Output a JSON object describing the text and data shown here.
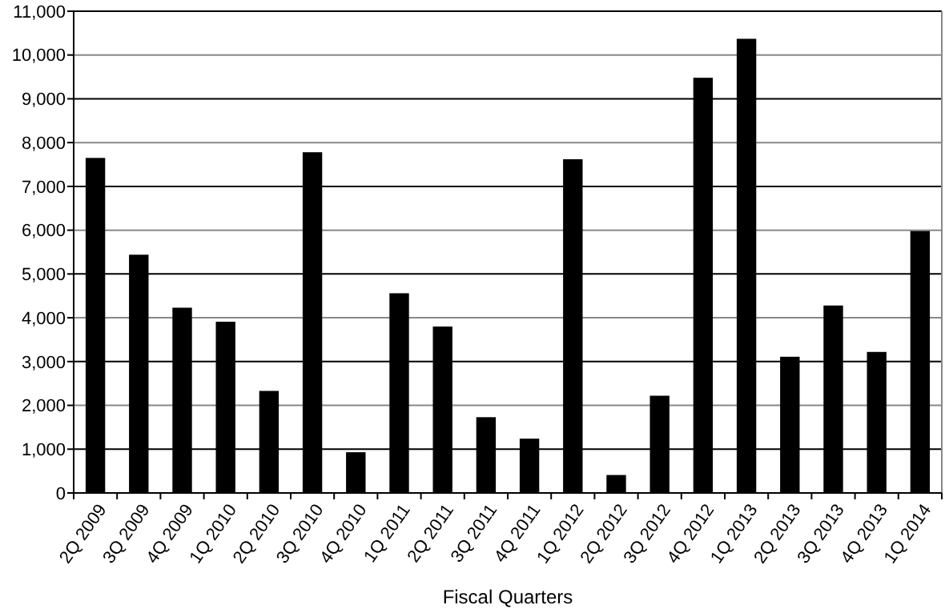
{
  "chart_data": {
    "type": "bar",
    "xlabel": "Fiscal Quarters",
    "categories": [
      "2Q 2009",
      "3Q 2009",
      "4Q 2009",
      "1Q 2010",
      "2Q 2010",
      "3Q 2010",
      "4Q 2010",
      "1Q 2011",
      "2Q 2011",
      "3Q 2011",
      "4Q 2011",
      "1Q 2012",
      "2Q 2012",
      "3Q 2012",
      "4Q 2012",
      "1Q 2013",
      "2Q 2013",
      "3Q 2013",
      "4Q 2013",
      "1Q 2014"
    ],
    "values": [
      7650,
      5440,
      4230,
      3910,
      2330,
      7780,
      930,
      4560,
      3800,
      1730,
      1240,
      7620,
      410,
      2220,
      9480,
      10370,
      3110,
      4280,
      3220,
      5980
    ],
    "color": "#000000",
    "ylim": [
      0,
      11000
    ],
    "yticks": [
      {
        "value": 0,
        "label": "0"
      },
      {
        "value": 1000,
        "label": "1,000"
      },
      {
        "value": 2000,
        "label": "2,000"
      },
      {
        "value": 3000,
        "label": "3,000"
      },
      {
        "value": 4000,
        "label": "4,000"
      },
      {
        "value": 5000,
        "label": "5,000"
      },
      {
        "value": 6000,
        "label": "6,000"
      },
      {
        "value": 7000,
        "label": "7,000"
      },
      {
        "value": 8000,
        "label": "8,000"
      },
      {
        "value": 9000,
        "label": "9,000"
      },
      {
        "value": 10000,
        "label": "10,000"
      },
      {
        "value": 11000,
        "label": "11,000"
      }
    ],
    "grid": true
  }
}
